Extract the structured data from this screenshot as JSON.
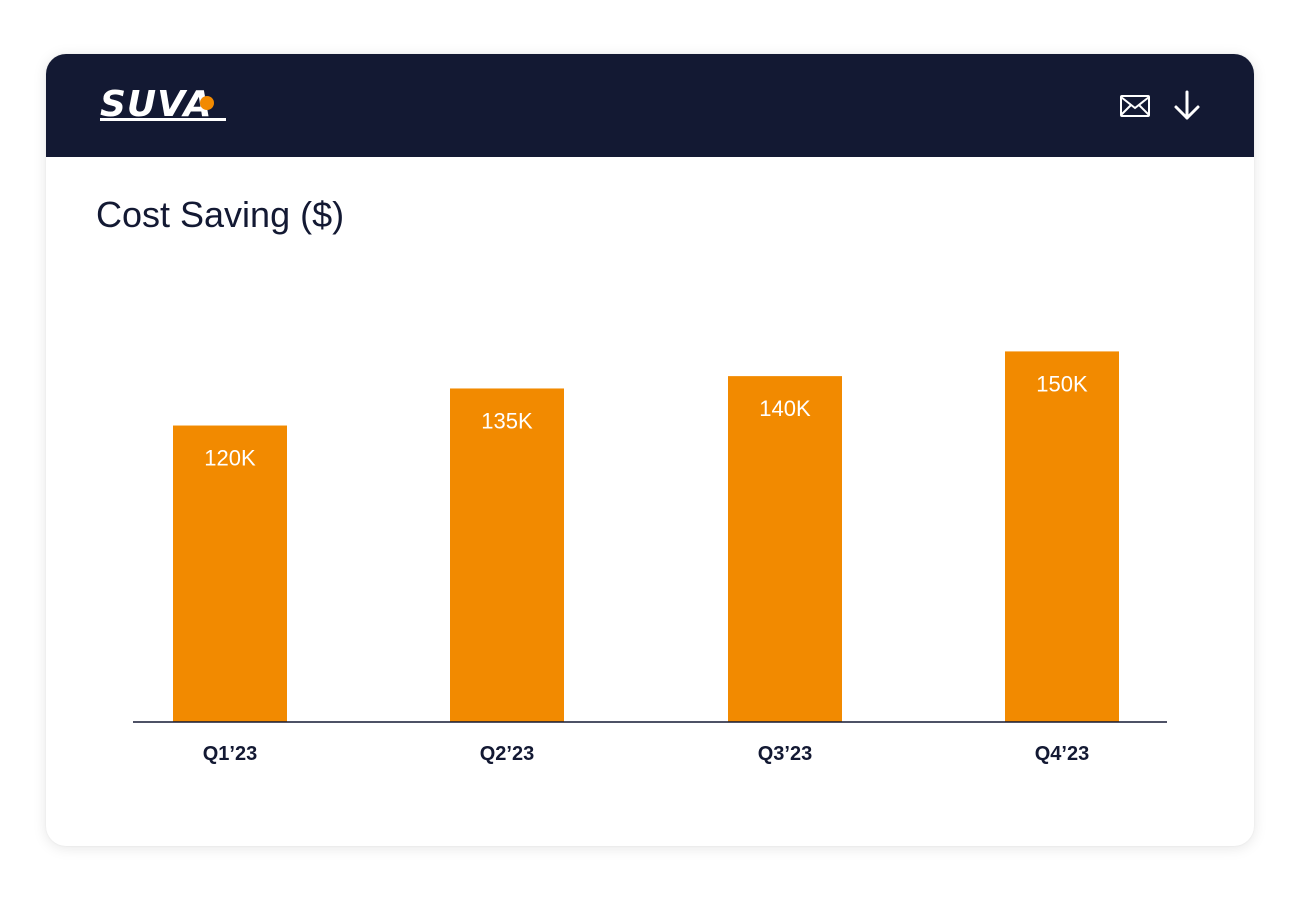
{
  "header": {
    "logo_text": "SUVA",
    "mail_icon": "mail-icon",
    "download_icon": "download-icon"
  },
  "colors": {
    "header_bg": "#131933",
    "accent": "#f28a00",
    "bar": "#f28a00",
    "text_dark": "#131933",
    "axis": "#131933"
  },
  "chart_data": {
    "type": "bar",
    "title": "Cost Saving ($)",
    "categories": [
      "Q1’23",
      "Q2’23",
      "Q3’23",
      "Q4’23"
    ],
    "values": [
      120,
      135,
      140,
      150
    ],
    "data_labels": [
      "120K",
      "135K",
      "140K",
      "150K"
    ],
    "ylim": [
      0,
      170
    ],
    "xlabel": "",
    "ylabel": "",
    "grid": false,
    "legend": "none"
  }
}
